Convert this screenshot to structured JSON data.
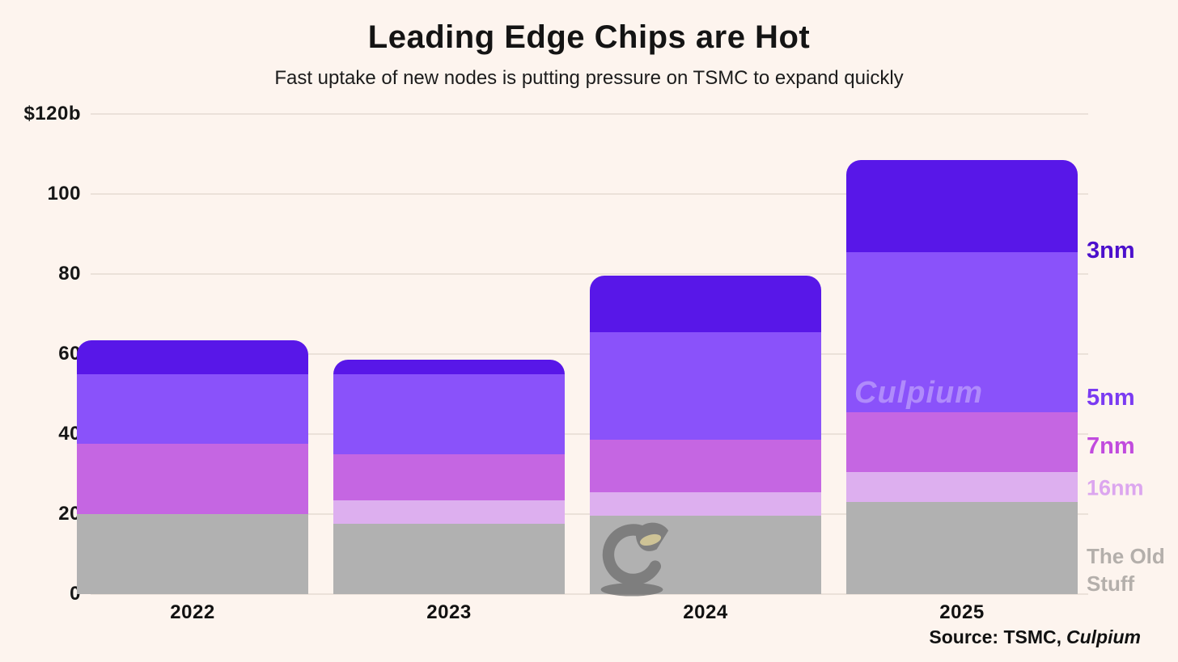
{
  "title": "Leading Edge Chips are Hot",
  "subtitle": "Fast uptake of new nodes is putting pressure on TSMC to expand quickly",
  "source": {
    "prefix": "Source: TSMC,",
    "brand": "Culpium"
  },
  "watermark": {
    "text": "Culpium",
    "logo_icon": "lamp-logo"
  },
  "colors": {
    "background": "#FDF4EE",
    "gridline": "#EBE1D9",
    "text": "#141414"
  },
  "chart_data": {
    "type": "bar",
    "stacked": true,
    "grid": true,
    "legend_position": "right",
    "categories": [
      "2022",
      "2023",
      "2024",
      "2025"
    ],
    "series": [
      {
        "name": "The Old Stuff",
        "color": "#B1B1B1",
        "label_color": "#B4AFAB",
        "values": [
          20,
          17.5,
          19.5,
          23
        ]
      },
      {
        "name": "16nm",
        "color": "#DDAFEF",
        "label_color": "#DCA6EF",
        "values": [
          0,
          6,
          6,
          7.5
        ]
      },
      {
        "name": "7nm",
        "color": "#C566E2",
        "label_color": "#C14BDE",
        "values": [
          17.5,
          11.5,
          13,
          15
        ]
      },
      {
        "name": "5nm",
        "color": "#8A52FA",
        "label_color": "#7B3BF2",
        "values": [
          17.5,
          20,
          27,
          40
        ]
      },
      {
        "name": "3nm",
        "color": "#5817E8",
        "label_color": "#4C10CC",
        "values": [
          8.5,
          3.5,
          14,
          23
        ]
      }
    ],
    "totals": [
      63.5,
      58.5,
      79.5,
      108.5
    ],
    "ylim": [
      0,
      120
    ],
    "yticks": [
      {
        "value": 0,
        "label": "0"
      },
      {
        "value": 20,
        "label": "20"
      },
      {
        "value": 40,
        "label": "40"
      },
      {
        "value": 60,
        "label": "60"
      },
      {
        "value": 80,
        "label": "80"
      },
      {
        "value": 100,
        "label": "100"
      },
      {
        "value": 120,
        "label": "$120b"
      }
    ],
    "xlabel": "",
    "ylabel": ""
  }
}
